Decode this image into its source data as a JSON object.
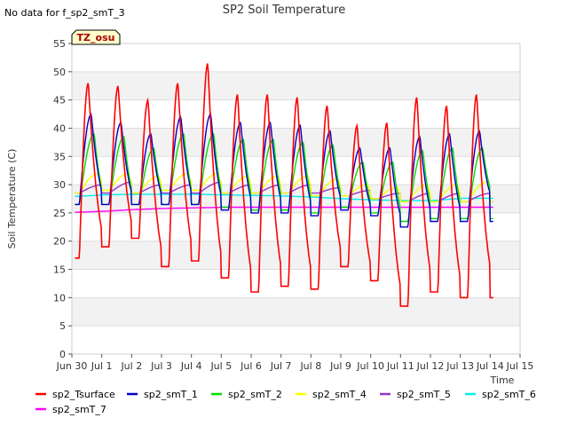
{
  "note": "No data for f_sp2_smT_3",
  "badge": "TZ_osu",
  "chart_data": {
    "type": "line",
    "title": "SP2 Soil Temperature",
    "ylabel": "Soil Temperature (C)",
    "xlabel": "Time",
    "ylim": [
      0,
      55
    ],
    "xlim": [
      0,
      15
    ],
    "y_ticks": [
      0,
      5,
      10,
      15,
      20,
      25,
      30,
      35,
      40,
      45,
      50,
      55
    ],
    "x_ticks": [
      {
        "v": 0,
        "label": "Jun 30"
      },
      {
        "v": 1,
        "label": "Jul 1"
      },
      {
        "v": 2,
        "label": "Jul 2"
      },
      {
        "v": 3,
        "label": "Jul 3"
      },
      {
        "v": 4,
        "label": "Jul 4"
      },
      {
        "v": 5,
        "label": "Jul 5"
      },
      {
        "v": 6,
        "label": "Jul 6"
      },
      {
        "v": 7,
        "label": "Jul 7"
      },
      {
        "v": 8,
        "label": "Jul 8"
      },
      {
        "v": 9,
        "label": "Jul 9"
      },
      {
        "v": 10,
        "label": "Jul 10"
      },
      {
        "v": 11,
        "label": "Jul 11"
      },
      {
        "v": 12,
        "label": "Jul 12"
      },
      {
        "v": 13,
        "label": "Jul 13"
      },
      {
        "v": 14,
        "label": "Jul 14"
      },
      {
        "v": 15,
        "label": "Jul 15"
      }
    ],
    "grid": true,
    "legend_position": "bottom",
    "days_start": 0.1,
    "days_end": 14.1,
    "series": [
      {
        "name": "sp2_Tsurface",
        "color": "#ff0000",
        "mins": [
          17,
          19,
          20.5,
          15.5,
          16.5,
          13.5,
          11,
          12,
          11.5,
          15.5,
          13,
          8.5,
          11,
          10,
          12
        ],
        "maxs": [
          48,
          47.5,
          45,
          48,
          51.5,
          46,
          46,
          45.5,
          44,
          40.5,
          41,
          45.5,
          44,
          46
        ],
        "peak": 0.55
      },
      {
        "name": "sp2_smT_1",
        "color": "#0000cc",
        "mins": [
          26.5,
          26.5,
          26.5,
          26.5,
          26.5,
          25.5,
          25,
          25,
          24.5,
          25.5,
          24.5,
          22.5,
          23.5,
          23.5,
          26.5
        ],
        "maxs": [
          42.5,
          41,
          39,
          42,
          42.5,
          41,
          41,
          40.5,
          39.5,
          36.5,
          36.5,
          38.5,
          39,
          39.5
        ],
        "peak": 0.65
      },
      {
        "name": "sp2_smT_2",
        "color": "#00dd00",
        "mins": [
          26.5,
          26.5,
          26.5,
          26.5,
          26.5,
          26,
          25.5,
          25.5,
          25,
          26,
          25,
          23.5,
          24,
          24,
          27.5
        ],
        "maxs": [
          39,
          38.5,
          36.5,
          39,
          39,
          38,
          38,
          37.5,
          37,
          34,
          34,
          36,
          36.5,
          36.5
        ],
        "peak": 0.75
      },
      {
        "name": "sp2_smT_4",
        "color": "#ffff00",
        "mins": [
          28.5,
          29,
          28.5,
          29,
          29,
          28.5,
          28.5,
          28.5,
          28,
          28,
          27.5,
          27,
          27,
          27,
          28
        ],
        "maxs": [
          32,
          32,
          31.5,
          32,
          32,
          31.5,
          31.5,
          31.5,
          31,
          30,
          29.5,
          30,
          30,
          30.5
        ],
        "peak": 0.9
      },
      {
        "name": "sp2_smT_5",
        "color": "#9933cc",
        "mins": [
          28.5,
          28.5,
          28.5,
          28.5,
          28.5,
          28.5,
          28.5,
          28.5,
          28.5,
          28,
          27.5,
          27,
          27,
          27,
          28.5
        ],
        "maxs": [
          30,
          30.5,
          30,
          30,
          30.5,
          30,
          30,
          30,
          29.5,
          29,
          28.5,
          28.5,
          28.5,
          28.5
        ],
        "peak": 1.05
      },
      {
        "name": "sp2_smT_6",
        "color": "#00eeee",
        "flat": [
          27.9,
          28.2,
          28.3,
          28.3,
          28.3,
          28.2,
          28.1,
          28,
          27.8,
          27.5,
          27.3,
          27.2,
          27.2,
          27.6
        ]
      },
      {
        "name": "sp2_smT_7",
        "color": "#ff00ff",
        "flat": [
          25.1,
          25.3,
          25.6,
          25.8,
          25.9,
          26,
          26,
          26,
          26,
          26,
          26,
          26,
          26,
          26
        ]
      }
    ]
  }
}
